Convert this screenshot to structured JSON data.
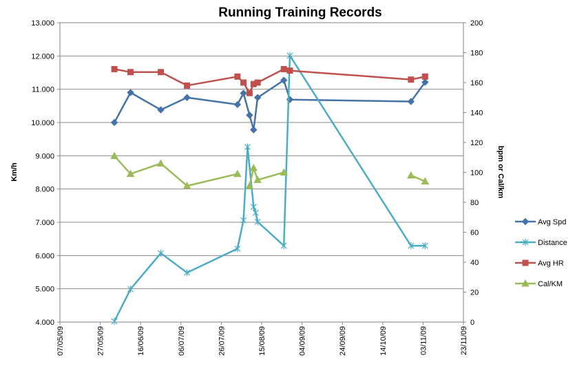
{
  "chart_data": {
    "type": "line",
    "title": "Running Training Records",
    "ylabel": "Km/h",
    "y2label": "bpm or Cal/km",
    "ylim": [
      4,
      13
    ],
    "y2lim": [
      0,
      200
    ],
    "xlim": [
      "2009-05-07",
      "2009-11-23"
    ],
    "grid": true,
    "legend_position": "right",
    "x_ticks": [
      "07/05/09",
      "27/05/09",
      "16/06/09",
      "06/07/09",
      "26/07/09",
      "15/08/09",
      "04/09/09",
      "24/09/09",
      "14/10/09",
      "03/11/09",
      "23/11/09"
    ],
    "y_ticks": [
      "4.000",
      "5.000",
      "6.000",
      "7.000",
      "8.000",
      "9.000",
      "10.000",
      "11.000",
      "12.000",
      "13.000"
    ],
    "y2_ticks": [
      "0",
      "20",
      "40",
      "60",
      "80",
      "100",
      "120",
      "140",
      "160",
      "180",
      "200"
    ],
    "series": [
      {
        "name": "Avg Spd",
        "axis": "left",
        "color": "#4572A7",
        "marker": "diamond",
        "points": [
          [
            "2009-06-03",
            10.0
          ],
          [
            "2009-06-11",
            10.9
          ],
          [
            "2009-06-26",
            10.38
          ],
          [
            "2009-07-09",
            10.75
          ],
          [
            "2009-08-03",
            10.54
          ],
          [
            "2009-08-06",
            10.88
          ],
          [
            "2009-08-09",
            10.22
          ],
          [
            "2009-08-11",
            9.78
          ],
          [
            "2009-08-13",
            10.75
          ],
          [
            "2009-08-26",
            11.27
          ],
          [
            "2009-08-29",
            10.69
          ],
          [
            "2009-10-28",
            10.63
          ],
          [
            "2009-11-04",
            11.21
          ]
        ]
      },
      {
        "name": "Distance",
        "axis": "right",
        "color": "#4BACC6",
        "marker": "star",
        "points": [
          [
            "2009-06-03",
            0.5
          ],
          [
            "2009-06-11",
            22
          ],
          [
            "2009-06-26",
            46
          ],
          [
            "2009-07-09",
            33
          ],
          [
            "2009-08-03",
            49
          ],
          [
            "2009-08-06",
            68
          ],
          [
            "2009-08-08",
            117
          ],
          [
            "2009-08-11",
            77
          ],
          [
            "2009-08-12",
            73
          ],
          [
            "2009-08-13",
            67
          ],
          [
            "2009-08-26",
            51
          ],
          [
            "2009-08-29",
            178
          ],
          [
            "2009-10-28",
            51
          ],
          [
            "2009-11-04",
            51
          ]
        ]
      },
      {
        "name": "Avg HR",
        "axis": "right",
        "color": "#C0504D",
        "marker": "square",
        "points": [
          [
            "2009-06-03",
            169
          ],
          [
            "2009-06-11",
            167
          ],
          [
            "2009-06-26",
            167
          ],
          [
            "2009-07-09",
            158
          ],
          [
            "2009-08-03",
            164
          ],
          [
            "2009-08-06",
            160
          ],
          [
            "2009-08-09",
            153
          ],
          [
            "2009-08-11",
            159
          ],
          [
            "2009-08-13",
            160
          ],
          [
            "2009-08-26",
            169
          ],
          [
            "2009-08-29",
            168
          ],
          [
            "2009-10-28",
            162
          ],
          [
            "2009-11-04",
            164
          ]
        ]
      },
      {
        "name": "Cal/KM",
        "axis": "right",
        "color": "#9BBB59",
        "marker": "triangle",
        "points": [
          [
            "2009-06-03",
            111
          ],
          [
            "2009-06-11",
            99
          ],
          [
            "2009-06-26",
            106
          ],
          [
            "2009-07-09",
            91
          ],
          [
            "2009-08-03",
            99
          ],
          null,
          [
            "2009-08-09",
            91
          ],
          [
            "2009-08-11",
            103
          ],
          [
            "2009-08-13",
            95
          ],
          [
            "2009-08-26",
            100
          ],
          null,
          [
            "2009-10-28",
            98
          ],
          [
            "2009-11-04",
            94
          ]
        ]
      }
    ]
  }
}
